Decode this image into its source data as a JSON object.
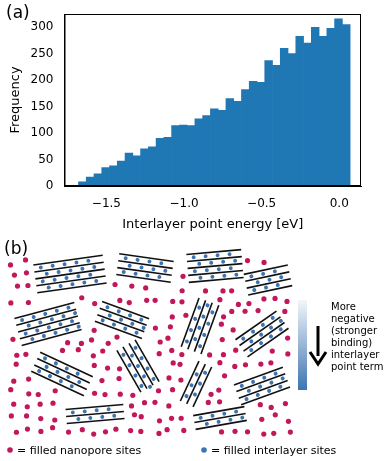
{
  "chart_data": {
    "type": "histogram",
    "panel": "(a)",
    "x_label": "Interlayer point energy [eV]",
    "y_label": "Frequency",
    "bins": [
      -1.68,
      -1.63,
      -1.58,
      -1.53,
      -1.48,
      -1.43,
      -1.38,
      -1.33,
      -1.28,
      -1.23,
      -1.18,
      -1.13,
      -1.08,
      -1.03,
      -0.98,
      -0.93,
      -0.88,
      -0.83,
      -0.78,
      -0.73,
      -0.68,
      -0.63,
      -0.58,
      -0.53,
      -0.48,
      -0.43,
      -0.38,
      -0.33,
      -0.28,
      -0.23,
      -0.18,
      -0.13,
      -0.08,
      -0.03,
      0.02,
      0.07
    ],
    "values": [
      8,
      17,
      23,
      35,
      38,
      47,
      62,
      57,
      70,
      74,
      90,
      92,
      114,
      115,
      114,
      127,
      133,
      146,
      143,
      165,
      160,
      182,
      198,
      196,
      237,
      228,
      260,
      250,
      283,
      270,
      300,
      283,
      298,
      316,
      305
    ],
    "color": "#1f77b4",
    "xlim": [
      -1.77,
      0.14
    ],
    "xticks": [
      {
        "value": -1.5,
        "label": "−1.5"
      },
      {
        "value": -1.0,
        "label": "−1.0"
      },
      {
        "value": -0.5,
        "label": "−0.5"
      },
      {
        "value": 0,
        "label": "0.0"
      }
    ],
    "ylim": [
      0,
      325
    ],
    "yticks": [
      0,
      50,
      100,
      150,
      200,
      250,
      300
    ],
    "grid": false
  },
  "diagram": {
    "panel": "(b)",
    "scale_label": "More negative (stronger binding) interlayer point term",
    "legend": [
      {
        "color": "#c2185b",
        "text": "= filled nanopore sites"
      },
      {
        "color": "#3d74b0",
        "text": "= filled interlayer sites"
      }
    ]
  }
}
